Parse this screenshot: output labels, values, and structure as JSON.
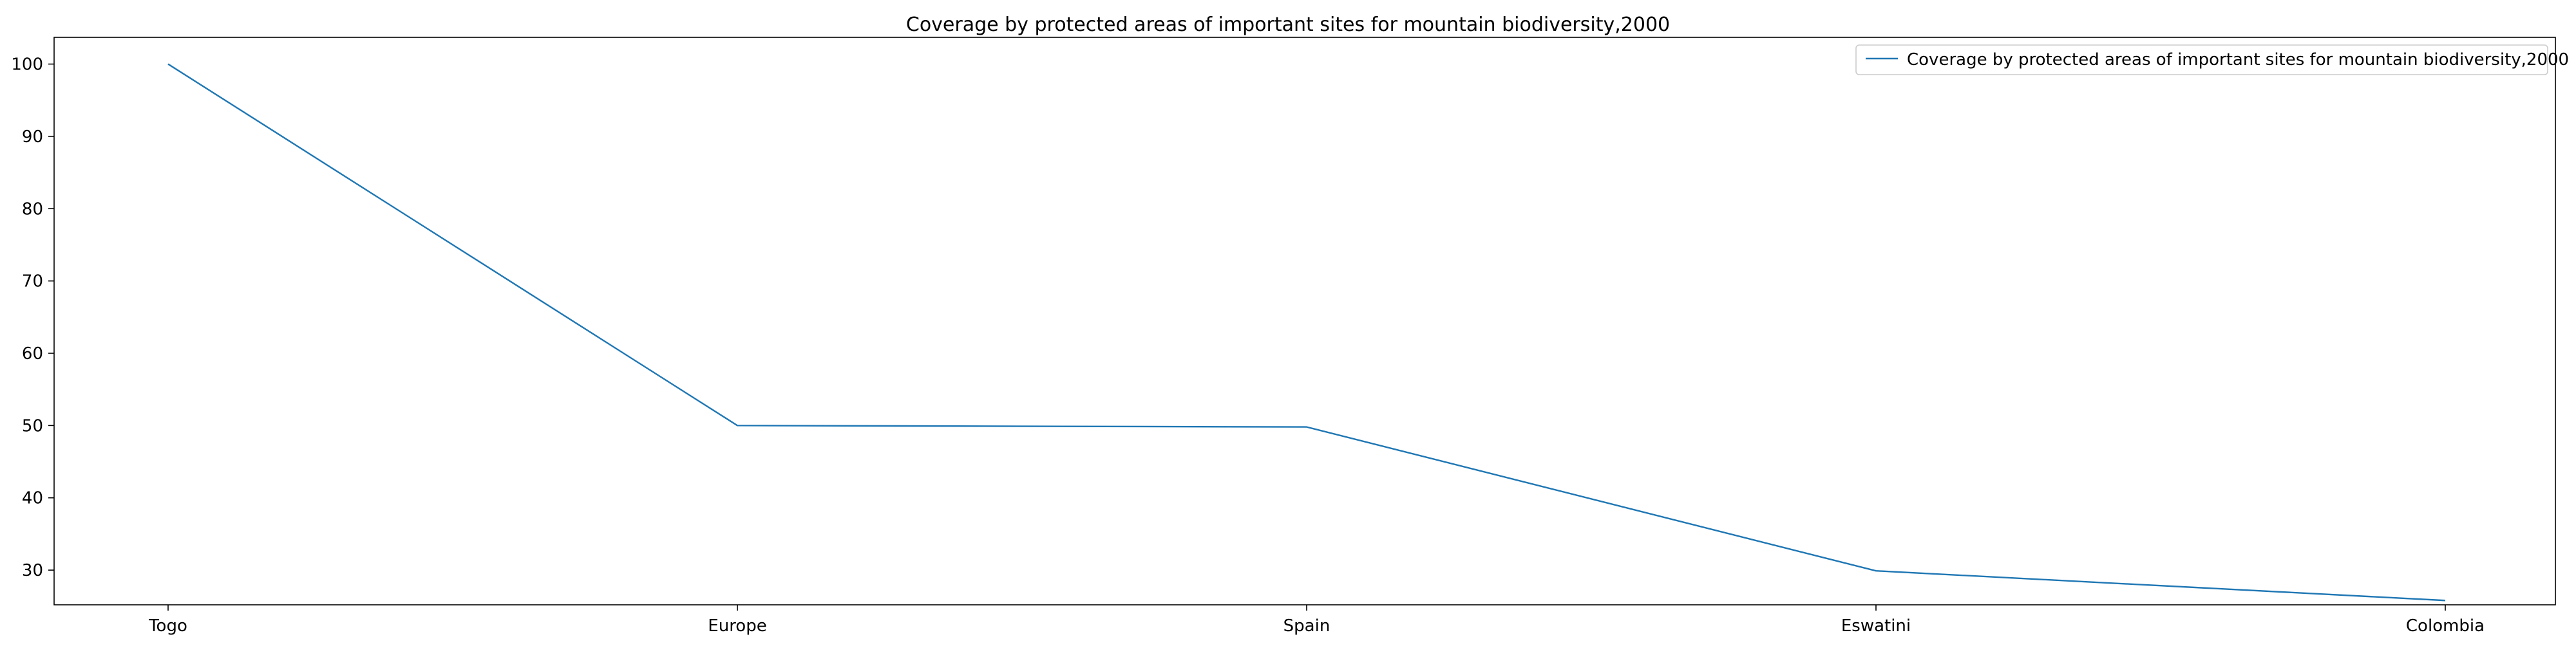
{
  "chart_data": {
    "type": "line",
    "title": "Coverage by protected areas of important sites for mountain biodiversity,2000",
    "xlabel": "",
    "ylabel": "",
    "categories": [
      "Togo",
      "Europe",
      "Spain",
      "Eswatini",
      "Colombia"
    ],
    "series": [
      {
        "name": "Coverage by protected areas of important sites for mountain biodiversity,2000",
        "values": [
          100,
          50,
          49.8,
          29.9,
          25.8
        ],
        "color": "#1f77b4"
      }
    ],
    "ylim": [
      25.2,
      103.7
    ],
    "yticks": [
      30,
      40,
      50,
      60,
      70,
      80,
      90,
      100
    ],
    "grid": false,
    "legend": "top-right"
  }
}
